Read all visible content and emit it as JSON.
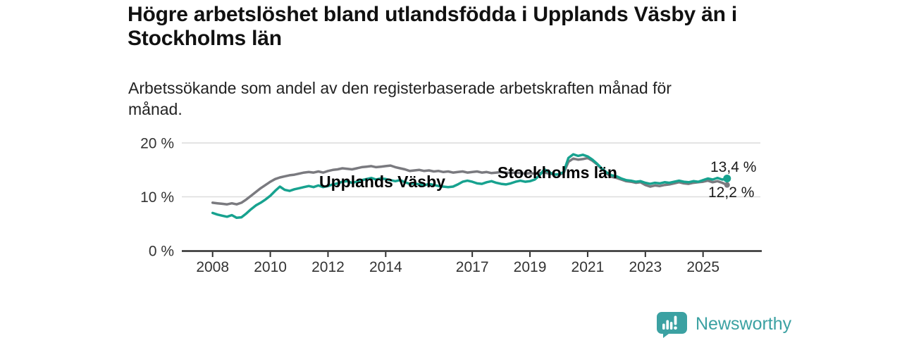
{
  "header": {
    "title_lines": [
      "Högre arbetslöshet bland utlandsfödda i Upplands Väsby än i",
      "Stockholms län"
    ],
    "subtitle_lines": [
      "Arbetssökande som andel av den registerbaserade arbetskraften månad för",
      "månad."
    ]
  },
  "colors": {
    "upplands_vasby": "#17a28f",
    "stockholms_lan": "#7a7a7f",
    "grid": "#dcdcdc",
    "axis": "#2f2f2f",
    "tick_text": "#333333",
    "brand_teal": "#3ba1a2"
  },
  "chart_data": {
    "type": "line",
    "unit": "%",
    "title": "Högre arbetslöshet bland utlandsfödda i Upplands Väsby än i Stockholms län",
    "subtitle": "Arbetssökande som andel av den registerbaserade arbetskraften månad för månad.",
    "x_start": 2008,
    "x_step_months": 2,
    "x_end_approx": 2025.83,
    "ylim": [
      0,
      20
    ],
    "grid": "horizontal",
    "legend": "inline-labels",
    "y_ticks": [
      {
        "value": 0,
        "label": "0 %"
      },
      {
        "value": 10,
        "label": "10 %"
      },
      {
        "value": 20,
        "label": "20 %"
      }
    ],
    "x_ticks": [
      {
        "year": 2008,
        "label": "2008"
      },
      {
        "year": 2010,
        "label": "2010"
      },
      {
        "year": 2012,
        "label": "2012"
      },
      {
        "year": 2014,
        "label": "2014"
      },
      {
        "year": 2017,
        "label": "2017"
      },
      {
        "year": 2019,
        "label": "2019"
      },
      {
        "year": 2021,
        "label": "2021"
      },
      {
        "year": 2023,
        "label": "2023"
      },
      {
        "year": 2025,
        "label": "2025"
      }
    ],
    "series": [
      {
        "name": "Stockholms län",
        "color": "#7a7a7f",
        "end_label": "12,2 %",
        "end_value": 12.2,
        "end_dot_r": 4,
        "values": [
          8.9,
          8.8,
          8.7,
          8.6,
          8.8,
          8.6,
          8.9,
          9.5,
          10.2,
          10.9,
          11.6,
          12.2,
          12.8,
          13.3,
          13.6,
          13.8,
          14.0,
          14.1,
          14.3,
          14.5,
          14.6,
          14.5,
          14.7,
          14.5,
          14.8,
          15.0,
          15.1,
          15.3,
          15.2,
          15.1,
          15.3,
          15.5,
          15.6,
          15.7,
          15.5,
          15.6,
          15.7,
          15.8,
          15.5,
          15.3,
          15.1,
          14.8,
          14.9,
          15.0,
          14.8,
          14.9,
          14.7,
          14.8,
          14.6,
          14.7,
          14.5,
          14.6,
          14.7,
          14.5,
          14.6,
          14.7,
          14.5,
          14.6,
          14.4,
          14.5,
          14.6,
          14.5,
          14.4,
          14.5,
          14.4,
          14.3,
          14.4,
          14.3,
          14.4,
          14.5,
          14.3,
          14.2,
          14.1,
          14.4,
          16.5,
          17.1,
          16.9,
          17.0,
          17.2,
          16.7,
          16.0,
          15.1,
          14.3,
          13.7,
          13.5,
          13.2,
          12.9,
          12.8,
          12.6,
          12.7,
          12.2,
          11.9,
          12.1,
          12.0,
          12.2,
          12.3,
          12.5,
          12.7,
          12.5,
          12.4,
          12.6,
          12.7,
          12.8,
          13.0,
          12.7,
          12.9,
          12.6,
          12.2
        ]
      },
      {
        "name": "Upplands Väsby",
        "color": "#17a28f",
        "end_label": "13,4 %",
        "end_value": 13.4,
        "end_dot_r": 5.5,
        "values": [
          7.0,
          6.7,
          6.5,
          6.3,
          6.6,
          6.1,
          6.2,
          6.9,
          7.7,
          8.4,
          8.9,
          9.5,
          10.2,
          11.1,
          11.9,
          11.3,
          11.1,
          11.4,
          11.6,
          11.8,
          12.0,
          11.8,
          12.1,
          11.8,
          12.0,
          12.3,
          12.5,
          12.8,
          12.9,
          12.6,
          12.8,
          13.1,
          13.3,
          13.5,
          13.2,
          13.4,
          13.3,
          13.1,
          12.9,
          13.1,
          12.7,
          12.4,
          12.5,
          12.3,
          12.1,
          12.4,
          12.2,
          12.0,
          11.9,
          11.8,
          11.9,
          12.3,
          12.8,
          13.0,
          12.8,
          12.5,
          12.4,
          12.7,
          12.9,
          12.6,
          12.4,
          12.3,
          12.5,
          12.8,
          13.0,
          12.8,
          12.9,
          13.2,
          14.0,
          15.1,
          14.6,
          14.1,
          14.2,
          14.6,
          17.2,
          17.9,
          17.6,
          17.8,
          17.5,
          16.9,
          16.1,
          15.2,
          14.5,
          14.0,
          13.8,
          13.4,
          13.1,
          13.0,
          12.8,
          12.9,
          12.6,
          12.4,
          12.6,
          12.5,
          12.7,
          12.6,
          12.8,
          13.0,
          12.8,
          12.7,
          12.9,
          12.8,
          13.1,
          13.4,
          13.2,
          13.5,
          13.2,
          13.4
        ]
      }
    ],
    "series_labels": [
      {
        "text": "Stockholms län",
        "color": "#7a7a7f"
      },
      {
        "text": "Upplands Väsby",
        "color": "#17a28f"
      }
    ]
  },
  "footer": {
    "brand": "Newsworthy",
    "logo_icon": "bar-chart-speech-bubble"
  }
}
